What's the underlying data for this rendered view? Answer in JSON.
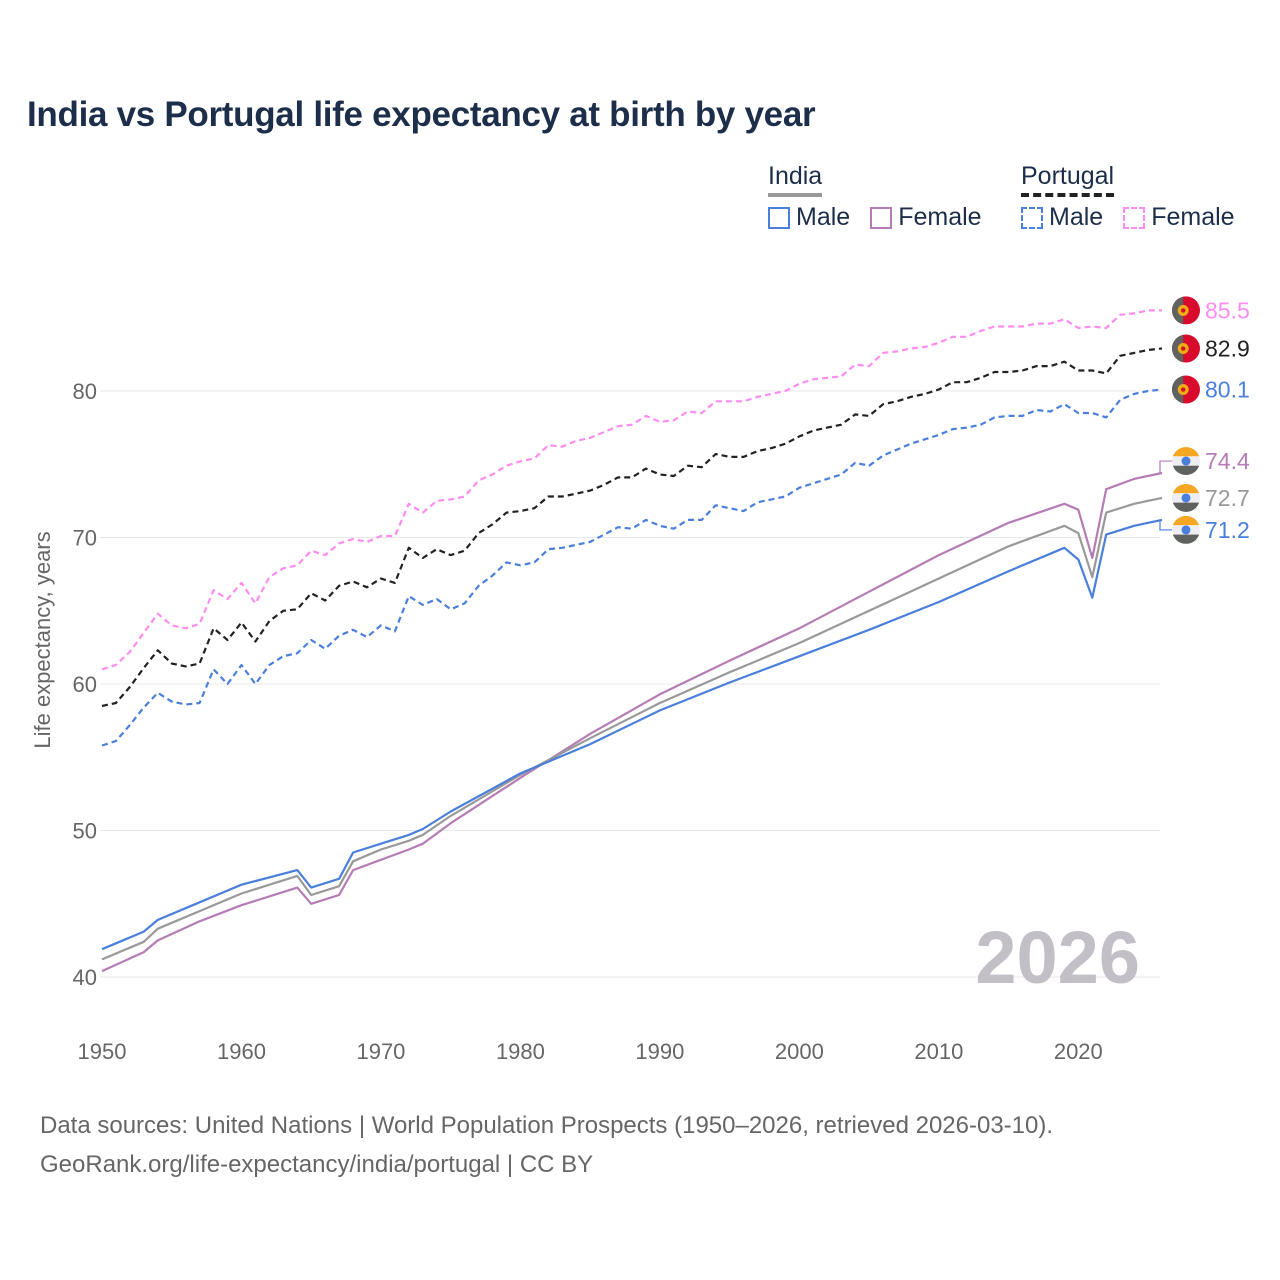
{
  "chart_data": {
    "type": "line",
    "title": "India vs Portugal life expectancy at birth by year",
    "xlabel": "",
    "ylabel": "Life expectancy, years",
    "xlim": [
      1950,
      2026
    ],
    "ylim": [
      40,
      85.5
    ],
    "xticks": [
      1950,
      1960,
      1970,
      1980,
      1990,
      2000,
      2010,
      2020
    ],
    "yticks": [
      40,
      50,
      60,
      70,
      80
    ],
    "grid": true,
    "year_watermark": "2026",
    "legend": {
      "placement": "top-right",
      "groups": [
        {
          "title": "India",
          "items": [
            "Male",
            "Female"
          ]
        },
        {
          "title": "Portugal",
          "items": [
            "Male",
            "Female"
          ]
        }
      ]
    },
    "colors": {
      "male": "#4a7fdb",
      "female": "#b57cb5",
      "india_total": "#999999",
      "portugal_female": "#ff8cf0",
      "portugal_total": "#222222"
    },
    "series": [
      {
        "name": "Portugal Female",
        "country": "Portugal",
        "dashed": true,
        "color": "#ff8cf0",
        "end_label": "85.5",
        "years_from": 1950,
        "values": [
          61.0,
          61.3,
          62.2,
          63.5,
          64.8,
          64.0,
          63.8,
          64.1,
          66.4,
          65.8,
          66.9,
          65.5,
          67.3,
          67.9,
          68.1,
          69.1,
          68.8,
          69.6,
          69.9,
          69.7,
          70.1,
          70.1,
          72.3,
          71.7,
          72.5,
          72.6,
          72.8,
          73.9,
          74.3,
          74.9,
          75.2,
          75.4,
          76.3,
          76.2,
          76.6,
          76.8,
          77.2,
          77.6,
          77.7,
          78.3,
          77.9,
          78.0,
          78.6,
          78.5,
          79.3,
          79.3,
          79.3,
          79.6,
          79.8,
          80.0,
          80.5,
          80.8,
          80.9,
          81.0,
          81.8,
          81.7,
          82.6,
          82.7,
          82.9,
          83.0,
          83.3,
          83.7,
          83.7,
          84.1,
          84.4,
          84.4,
          84.4,
          84.6,
          84.6,
          84.9,
          84.3,
          84.4,
          84.3,
          85.2,
          85.3,
          85.5,
          85.5
        ]
      },
      {
        "name": "Portugal Total",
        "country": "Portugal",
        "dashed": true,
        "color": "#222222",
        "end_label": "82.9",
        "years_from": 1950,
        "values": [
          58.5,
          58.7,
          59.8,
          61.1,
          62.3,
          61.4,
          61.2,
          61.4,
          63.8,
          63.0,
          64.2,
          62.9,
          64.3,
          65.0,
          65.1,
          66.2,
          65.7,
          66.7,
          67.0,
          66.6,
          67.2,
          66.9,
          69.3,
          68.6,
          69.2,
          68.8,
          69.1,
          70.3,
          70.9,
          71.7,
          71.8,
          72.0,
          72.8,
          72.8,
          73.0,
          73.2,
          73.6,
          74.1,
          74.1,
          74.7,
          74.3,
          74.2,
          74.9,
          74.8,
          75.7,
          75.5,
          75.5,
          75.9,
          76.1,
          76.4,
          76.9,
          77.3,
          77.5,
          77.7,
          78.4,
          78.3,
          79.1,
          79.3,
          79.6,
          79.8,
          80.1,
          80.6,
          80.6,
          80.9,
          81.3,
          81.3,
          81.4,
          81.7,
          81.7,
          82.0,
          81.4,
          81.4,
          81.2,
          82.4,
          82.6,
          82.8,
          82.9
        ]
      },
      {
        "name": "Portugal Male",
        "country": "Portugal",
        "dashed": true,
        "color": "#4a7fdb",
        "end_label": "80.1",
        "years_from": 1950,
        "values": [
          55.8,
          56.1,
          57.2,
          58.4,
          59.4,
          58.8,
          58.6,
          58.7,
          61.0,
          60.0,
          61.3,
          60.0,
          61.3,
          61.9,
          62.1,
          63.0,
          62.4,
          63.3,
          63.7,
          63.2,
          64.0,
          63.6,
          66.0,
          65.4,
          65.8,
          65.1,
          65.5,
          66.7,
          67.4,
          68.3,
          68.1,
          68.3,
          69.2,
          69.3,
          69.5,
          69.7,
          70.2,
          70.7,
          70.6,
          71.2,
          70.8,
          70.6,
          71.2,
          71.2,
          72.2,
          72.0,
          71.8,
          72.4,
          72.6,
          72.8,
          73.4,
          73.7,
          74.0,
          74.3,
          75.1,
          74.9,
          75.6,
          76.0,
          76.4,
          76.7,
          77.0,
          77.4,
          77.5,
          77.7,
          78.2,
          78.3,
          78.3,
          78.7,
          78.6,
          79.1,
          78.5,
          78.5,
          78.2,
          79.4,
          79.8,
          80.0,
          80.1
        ]
      },
      {
        "name": "India Female",
        "country": "India",
        "dashed": false,
        "color": "#b57cb5",
        "end_label": "74.4",
        "points": [
          [
            1950,
            40.4
          ],
          [
            1953,
            41.7
          ],
          [
            1954,
            42.5
          ],
          [
            1957,
            43.8
          ],
          [
            1960,
            44.9
          ],
          [
            1964,
            46.1
          ],
          [
            1965,
            45.0
          ],
          [
            1967,
            45.6
          ],
          [
            1968,
            47.3
          ],
          [
            1970,
            48.0
          ],
          [
            1972,
            48.7
          ],
          [
            1973,
            49.1
          ],
          [
            1975,
            50.5
          ],
          [
            1980,
            53.6
          ],
          [
            1985,
            56.6
          ],
          [
            1990,
            59.3
          ],
          [
            1995,
            61.6
          ],
          [
            2000,
            63.8
          ],
          [
            2005,
            66.3
          ],
          [
            2010,
            68.8
          ],
          [
            2015,
            71.0
          ],
          [
            2019,
            72.3
          ],
          [
            2020,
            71.9
          ],
          [
            2021,
            68.6
          ],
          [
            2022,
            73.3
          ],
          [
            2024,
            74.0
          ],
          [
            2026,
            74.4
          ]
        ]
      },
      {
        "name": "India Total",
        "country": "India",
        "dashed": false,
        "color": "#999999",
        "end_label": "72.7",
        "points": [
          [
            1950,
            41.2
          ],
          [
            1953,
            42.4
          ],
          [
            1954,
            43.3
          ],
          [
            1957,
            44.5
          ],
          [
            1960,
            45.7
          ],
          [
            1964,
            46.9
          ],
          [
            1965,
            45.6
          ],
          [
            1967,
            46.2
          ],
          [
            1968,
            47.9
          ],
          [
            1970,
            48.7
          ],
          [
            1972,
            49.3
          ],
          [
            1973,
            49.7
          ],
          [
            1975,
            51.0
          ],
          [
            1980,
            53.8
          ],
          [
            1985,
            56.3
          ],
          [
            1990,
            58.7
          ],
          [
            1995,
            60.8
          ],
          [
            2000,
            62.8
          ],
          [
            2005,
            65.0
          ],
          [
            2010,
            67.2
          ],
          [
            2015,
            69.4
          ],
          [
            2019,
            70.8
          ],
          [
            2020,
            70.3
          ],
          [
            2021,
            67.3
          ],
          [
            2022,
            71.7
          ],
          [
            2024,
            72.3
          ],
          [
            2026,
            72.7
          ]
        ]
      },
      {
        "name": "India Male",
        "country": "India",
        "dashed": false,
        "color": "#4a7fdb",
        "end_label": "71.2",
        "points": [
          [
            1950,
            41.9
          ],
          [
            1953,
            43.1
          ],
          [
            1954,
            43.9
          ],
          [
            1957,
            45.1
          ],
          [
            1960,
            46.3
          ],
          [
            1964,
            47.3
          ],
          [
            1965,
            46.1
          ],
          [
            1967,
            46.7
          ],
          [
            1968,
            48.5
          ],
          [
            1970,
            49.1
          ],
          [
            1972,
            49.7
          ],
          [
            1973,
            50.1
          ],
          [
            1975,
            51.3
          ],
          [
            1980,
            53.9
          ],
          [
            1985,
            55.9
          ],
          [
            1990,
            58.2
          ],
          [
            1995,
            60.1
          ],
          [
            2000,
            61.9
          ],
          [
            2005,
            63.7
          ],
          [
            2010,
            65.6
          ],
          [
            2015,
            67.7
          ],
          [
            2019,
            69.3
          ],
          [
            2020,
            68.5
          ],
          [
            2021,
            65.9
          ],
          [
            2022,
            70.2
          ],
          [
            2024,
            70.8
          ],
          [
            2026,
            71.2
          ]
        ]
      }
    ]
  },
  "source": {
    "line1": "Data sources: United Nations | World Population Prospects (1950–2026, retrieved 2026-03-10).",
    "line2": "GeoRank.org/life-expectancy/india/portugal | CC BY"
  }
}
